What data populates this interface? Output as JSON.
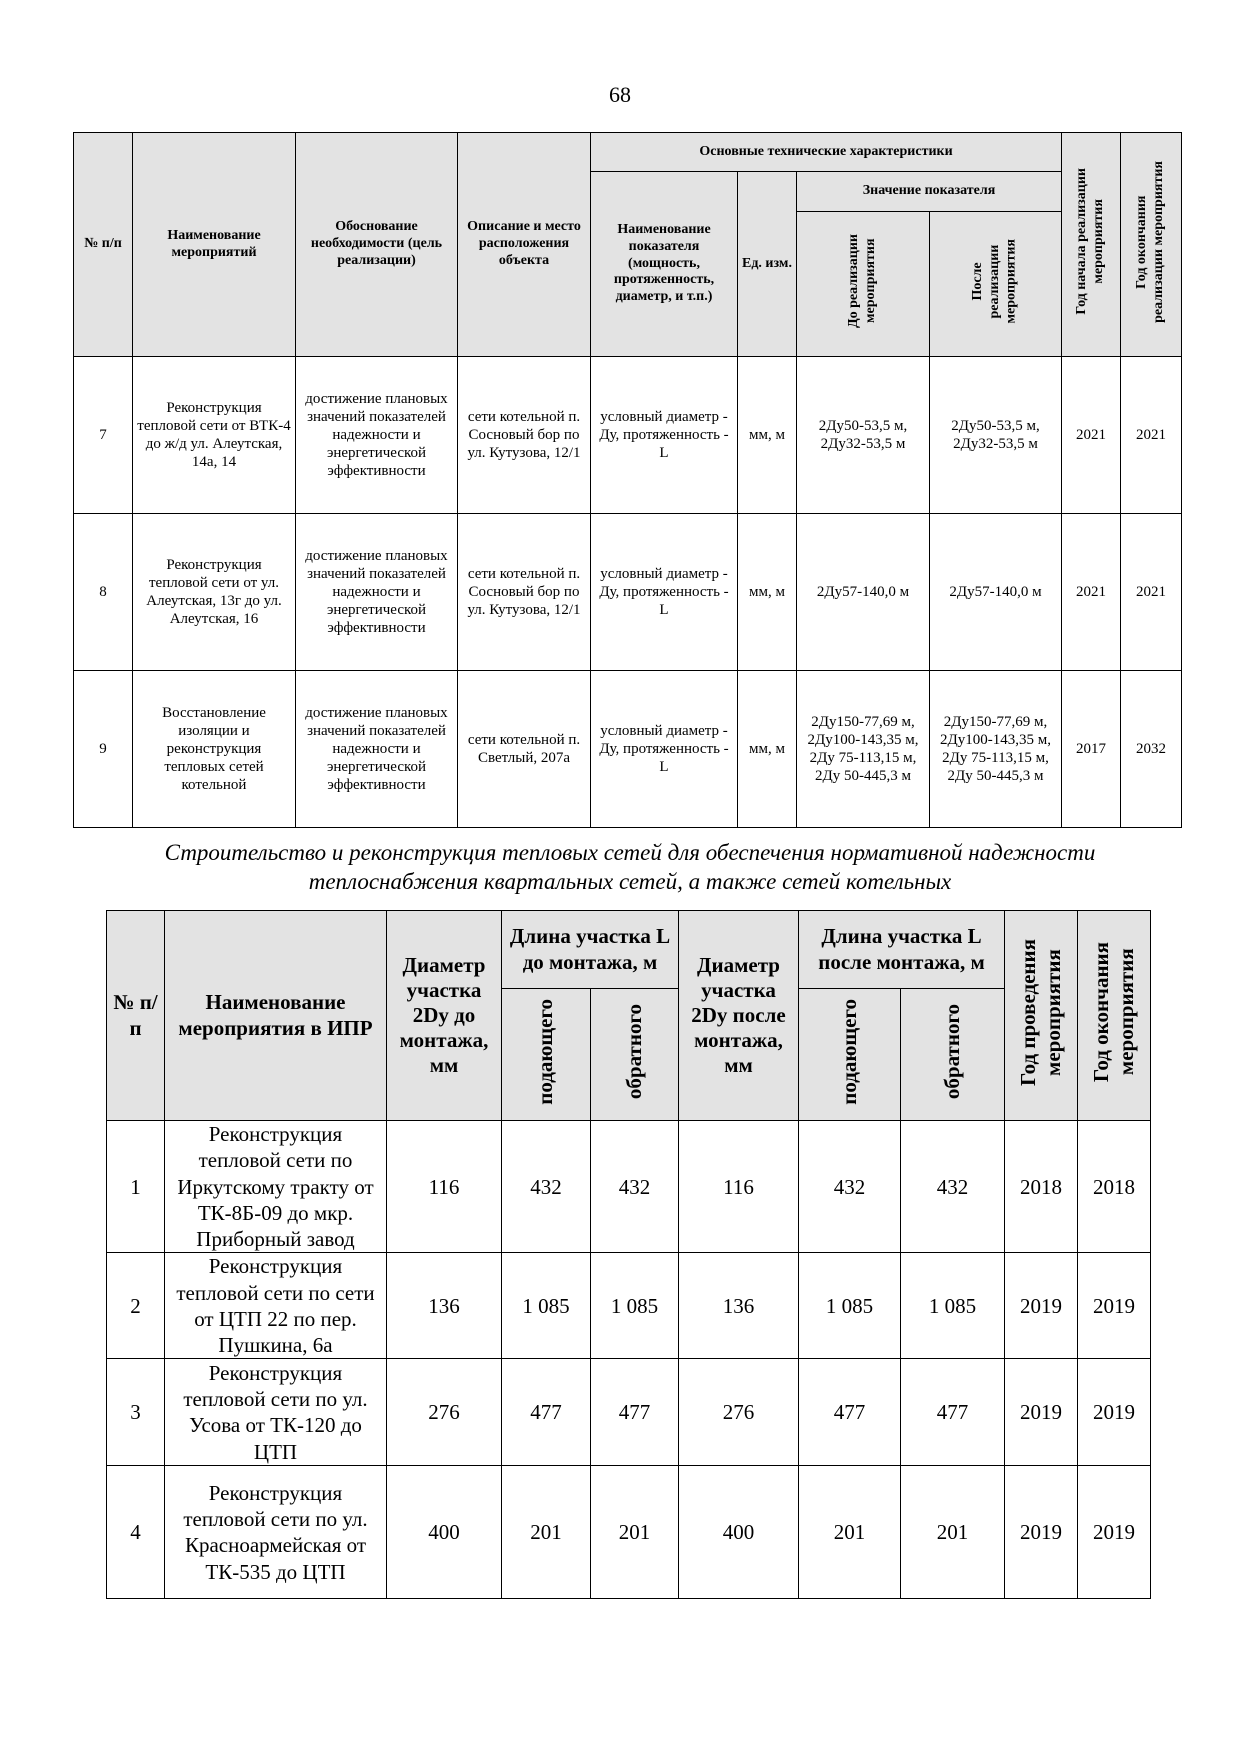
{
  "page_number": "68",
  "table1": {
    "headers": {
      "num": "№ п/п",
      "name": "Наименование мероприятий",
      "reason": "Обоснование необходимости (цель реализации)",
      "location": "Описание и место расположения объекта",
      "tech": "Основные технические характеристики",
      "indicator": "Наименование показателя (мощность, протяженность, диаметр, и т.п.)",
      "unit": "Ед. изм.",
      "value": "Значение показателя",
      "before": "До реализации\nмероприятия",
      "after": "После\nреализации\nмероприятия",
      "start": "Год начала реализации\nмероприятия",
      "end": "Год окончания\nреализации мероприятия"
    },
    "rows": [
      {
        "num": "7",
        "name": "Реконструкция тепловой сети от ВТК-4 до ж/д ул. Алеутская, 14а, 14",
        "reason": "достижение плановых значений показателей надежности и энергетической эффективности",
        "location": "сети котельной п. Сосновый бор по ул. Кутузова, 12/1",
        "indicator": "условный диаметр - Ду, протяженность - L",
        "unit": "мм, м",
        "before": "2Ду50-53,5 м, 2Ду32-53,5 м",
        "after": "2Ду50-53,5 м, 2Ду32-53,5 м",
        "start": "2021",
        "end": "2021"
      },
      {
        "num": "8",
        "name": "Реконструкция тепловой сети от ул. Алеутская, 13г до ул. Алеутская, 16",
        "reason": "достижение плановых значений показателей надежности и энергетической эффективности",
        "location": "сети котельной п. Сосновый бор по ул. Кутузова, 12/1",
        "indicator": "условный диаметр - Ду, протяженность - L",
        "unit": "мм, м",
        "before": "2Ду57-140,0 м",
        "after": "2Ду57-140,0 м",
        "start": "2021",
        "end": "2021"
      },
      {
        "num": "9",
        "name": "Восстановление изоляции и реконструкция тепловых сетей котельной",
        "reason": "достижение плановых значений показателей надежности и энергетической эффективности",
        "location": "сети котельной п. Светлый, 207а",
        "indicator": "условный диаметр - Ду, протяженность - L",
        "unit": "мм, м",
        "before": "2Ду150-77,69 м, 2Ду100-143,35 м, 2Ду 75-113,15 м, 2Ду 50-445,3 м",
        "after": "2Ду150-77,69 м, 2Ду100-143,35 м, 2Ду 75-113,15 м, 2Ду 50-445,3 м",
        "start": "2017",
        "end": "2032"
      }
    ]
  },
  "caption": "Строительство и реконструкция тепловых сетей для обеспечения нормативной надежности теплоснабжения квартальных сетей, а также сетей котельных",
  "table2": {
    "headers": {
      "num": "№ п/п",
      "name": "Наименование мероприятия в ИПР",
      "dia_before": "Диаметр участка 2Dy до монтажа, мм",
      "len_before": "Длина участка L до монтажа, м",
      "dia_after": "Диаметр участка 2Dy после монтажа, мм",
      "len_after": "Длина участка L после монтажа, м",
      "supply": "подающего",
      "return": "обратного",
      "year_start": "Год проведения\nмероприятия",
      "year_end": "Год окончания\nмероприятия"
    },
    "rows": [
      {
        "num": "1",
        "name": "Реконструкция тепловой сети по Иркутскому тракту от ТК-8Б-09 до мкр. Приборный завод",
        "dia_before": "116",
        "sup_before": "432",
        "ret_before": "432",
        "dia_after": "116",
        "sup_after": "432",
        "ret_after": "432",
        "start": "2018",
        "end": "2018"
      },
      {
        "num": "2",
        "name": "Реконструкция тепловой сети по сети от ЦТП 22 по пер. Пушкина, 6а",
        "dia_before": "136",
        "sup_before": "1 085",
        "ret_before": "1 085",
        "dia_after": "136",
        "sup_after": "1 085",
        "ret_after": "1 085",
        "start": "2019",
        "end": "2019"
      },
      {
        "num": "3",
        "name": "Реконструкция тепловой сети по ул. Усова от ТК-120 до ЦТП",
        "dia_before": "276",
        "sup_before": "477",
        "ret_before": "477",
        "dia_after": "276",
        "sup_after": "477",
        "ret_after": "477",
        "start": "2019",
        "end": "2019"
      },
      {
        "num": "4",
        "name": "Реконструкция тепловой сети по ул. Красноармейская от ТК-535 до ЦТП",
        "dia_before": "400",
        "sup_before": "201",
        "ret_before": "201",
        "dia_after": "400",
        "sup_after": "201",
        "ret_after": "201",
        "start": "2019",
        "end": "2019"
      }
    ]
  }
}
